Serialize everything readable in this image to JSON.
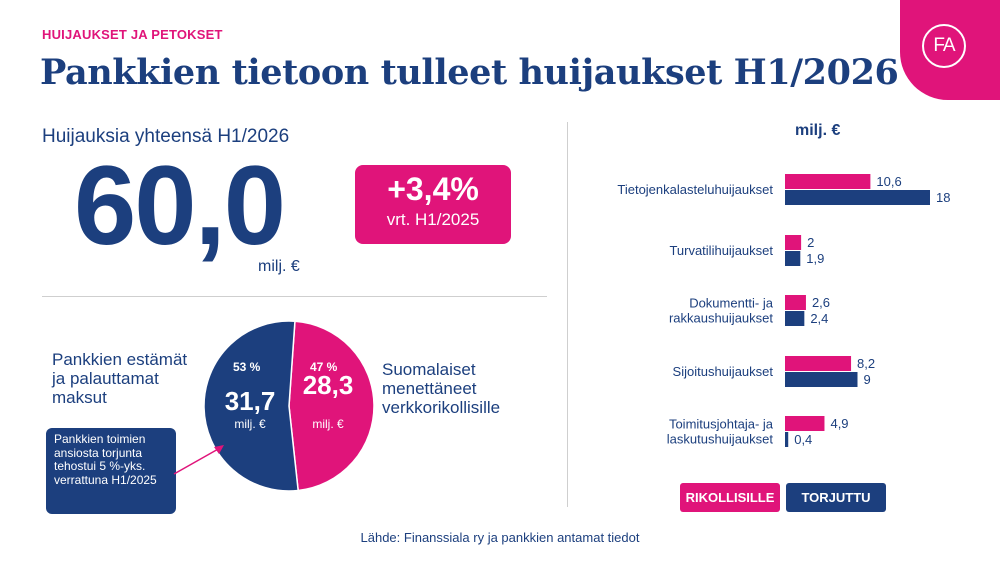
{
  "header": {
    "category": "HUIJAUKSET JA PETOKSET",
    "title": "Pankkien tietoon tulleet huijaukset H1/2026",
    "logo_text": "FA"
  },
  "total": {
    "label": "Huijauksia yhteensä H1/2026",
    "value": "60,0",
    "unit": "milj. €",
    "change": "+3,4%",
    "change_ref": "vrt. H1/2025"
  },
  "pie": {
    "left_label": "Pankkien estämät ja palauttamat maksut",
    "right_label": "Suomalaiset menettäneet verkkorikollisille",
    "callout": "Pankkien toimien ansiosta torjunta tehostui 5 %-yks. verrattuna H1/2025"
  },
  "chart_data": [
    {
      "type": "pie",
      "slices": [
        {
          "label": "Pankkien estämät ja palauttamat maksut",
          "value": 31.7,
          "value_text": "31,7",
          "percent": 53,
          "percent_text": "53 %",
          "unit": "milj. €",
          "color": "#1c3f7e"
        },
        {
          "label": "Suomalaiset menettäneet verkkorikollisille",
          "value": 28.3,
          "value_text": "28,3",
          "percent": 47,
          "percent_text": "47 %",
          "unit": "milj. €",
          "color": "#e0147a"
        }
      ]
    },
    {
      "type": "bar",
      "orientation": "horizontal",
      "unit_label": "milj. €",
      "categories": [
        [
          "Tietojenkalasteluhuijaukset"
        ],
        [
          "Turvatilihuijaukset"
        ],
        [
          "Dokumentti- ja",
          "rakkaushuijaukset"
        ],
        [
          "Sijoitushuijaukset"
        ],
        [
          "Toimitusjohtaja- ja",
          "laskutushuijaukset"
        ]
      ],
      "series": [
        {
          "name": "RIKOLLISILLE",
          "color": "#e0147a",
          "values": [
            10.6,
            2,
            2.6,
            8.2,
            4.9
          ],
          "labels": [
            "10,6",
            "2",
            "2,6",
            "8,2",
            "4,9"
          ]
        },
        {
          "name": "TORJUTTU",
          "color": "#1c3f7e",
          "values": [
            18,
            1.9,
            2.4,
            9,
            0.4
          ],
          "labels": [
            "18",
            "1,9",
            "2,4",
            "9",
            "0,4"
          ]
        }
      ],
      "xlim": [
        0,
        18
      ],
      "grid": false,
      "legend_position": "bottom"
    }
  ],
  "source": "Lähde: Finanssiala ry ja pankkien antamat tiedot"
}
